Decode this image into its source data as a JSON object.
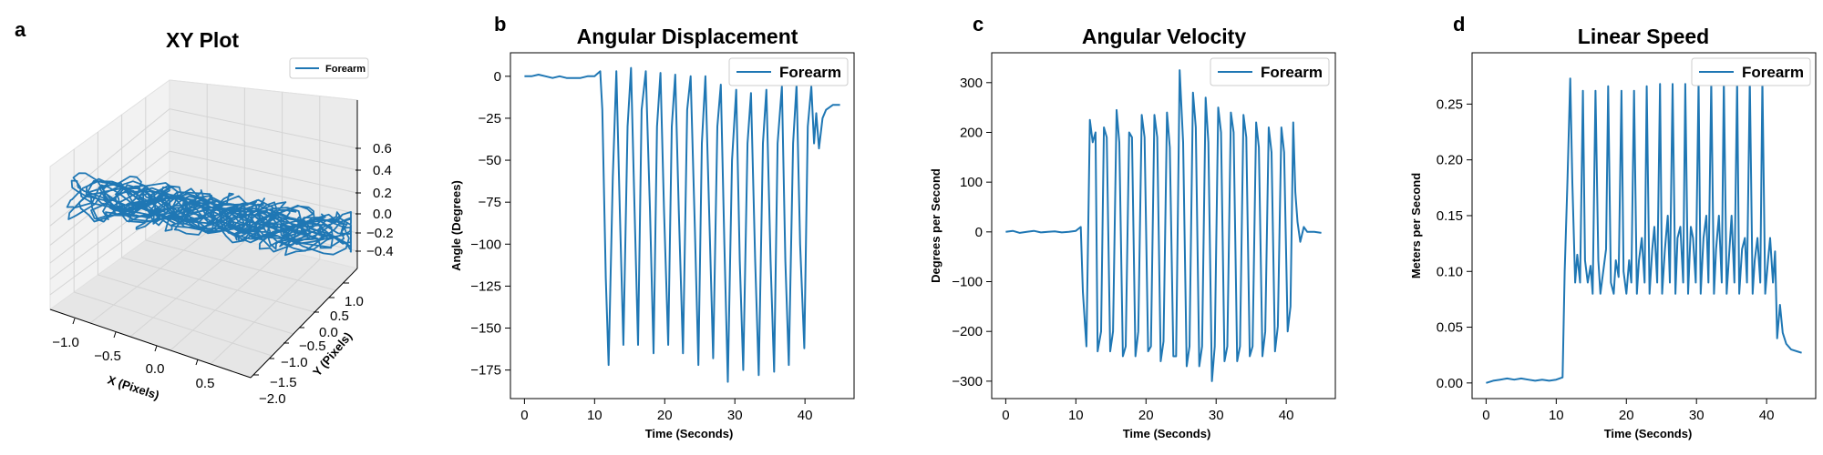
{
  "chart_data": [
    {
      "panel": "a",
      "type": "line3d",
      "title": "XY Plot",
      "xlabel": "X (Pixels)",
      "ylabel": "Y (Pixels)",
      "zlabel": "",
      "xticks": [
        "−1.0",
        "−0.5",
        "0.0",
        "0.5"
      ],
      "yticks": [
        "−2.0",
        "−1.5",
        "−1.0",
        "−0.5",
        "0.0",
        "0.5",
        "1.0"
      ],
      "zticks": [
        "−0.4",
        "−0.2",
        "0.0",
        "0.2",
        "0.4",
        "0.6"
      ],
      "xlim": [
        -1.2,
        0.9
      ],
      "ylim": [
        -2.0,
        1.2
      ],
      "zlim": [
        -0.5,
        0.7
      ],
      "legend": [
        "Forearm"
      ],
      "legend_position": "top-right",
      "series": [
        {
          "name": "Forearm",
          "description_points": "dense oscillating trajectory"
        }
      ]
    },
    {
      "panel": "b",
      "type": "line",
      "title": "Angular Displacement",
      "xlabel": "Time (Seconds)",
      "ylabel": "Angle (Degrees)",
      "xlim": [
        -2,
        47
      ],
      "ylim": [
        -192,
        14
      ],
      "xticks": [
        0,
        10,
        20,
        30,
        40
      ],
      "yticks": [
        0,
        -25,
        -50,
        -75,
        -100,
        -125,
        -150,
        -175
      ],
      "ytick_labels": [
        "0",
        "−25",
        "−50",
        "−75",
        "−100",
        "−125",
        "−150",
        "−175"
      ],
      "legend": [
        "Forearm"
      ],
      "legend_position": "top-right",
      "series": [
        {
          "name": "Forearm",
          "x": [
            0,
            1,
            2,
            3,
            4,
            5,
            6,
            7,
            8,
            9,
            10,
            10.8,
            11.1,
            11.6,
            12.0,
            12.6,
            13.1,
            13.6,
            14.1,
            14.7,
            15.2,
            15.7,
            16.2,
            16.7,
            17.3,
            17.9,
            18.4,
            18.9,
            19.4,
            19.9,
            20.5,
            21.0,
            21.5,
            22.0,
            22.6,
            23.2,
            23.7,
            24.3,
            24.8,
            25.3,
            25.8,
            26.4,
            26.9,
            27.5,
            28.0,
            28.5,
            29.0,
            29.6,
            30.2,
            30.7,
            31.2,
            31.8,
            32.3,
            32.9,
            33.4,
            34.0,
            34.5,
            35.1,
            35.6,
            36.1,
            36.7,
            37.2,
            37.7,
            38.3,
            38.8,
            39.3,
            39.9,
            40.4,
            40.9,
            41.3,
            41.6,
            42.0,
            42.5,
            43.0,
            44.0,
            45.0
          ],
          "y": [
            0,
            0,
            1,
            0,
            -1,
            0,
            -1,
            -1,
            -1,
            0,
            0,
            3,
            -20,
            -120,
            -172,
            -60,
            3,
            -80,
            -160,
            -30,
            5,
            -80,
            -160,
            -20,
            3,
            -80,
            -165,
            -30,
            2,
            -80,
            -160,
            -30,
            1,
            -80,
            -165,
            -20,
            0,
            -90,
            -172,
            -40,
            0,
            -90,
            -168,
            -30,
            -5,
            -100,
            -182,
            -50,
            -8,
            -110,
            -175,
            -40,
            -10,
            -110,
            -178,
            -40,
            -8,
            -110,
            -176,
            -40,
            -6,
            -110,
            -172,
            -40,
            -5,
            -100,
            -162,
            -30,
            -6,
            -40,
            -22,
            -43,
            -25,
            -20,
            -17,
            -17
          ]
        }
      ]
    },
    {
      "panel": "c",
      "type": "line",
      "title": "Angular Velocity",
      "xlabel": "Time (Seconds)",
      "ylabel": "Degrees per Second",
      "xlim": [
        -2,
        47
      ],
      "ylim": [
        -335,
        360
      ],
      "xticks": [
        0,
        10,
        20,
        30,
        40
      ],
      "yticks": [
        300,
        200,
        100,
        0,
        -100,
        -200,
        -300
      ],
      "ytick_labels": [
        "300",
        "200",
        "100",
        "0",
        "−100",
        "−200",
        "−300"
      ],
      "legend": [
        "Forearm"
      ],
      "legend_position": "top-right",
      "series": [
        {
          "name": "Forearm",
          "x": [
            0,
            1,
            2,
            3,
            4,
            5,
            6,
            7,
            8,
            9,
            10,
            10.7,
            11.0,
            11.5,
            12.0,
            12.4,
            12.8,
            13.1,
            13.6,
            14.0,
            14.4,
            14.9,
            15.3,
            15.8,
            16.2,
            16.7,
            17.1,
            17.6,
            18.0,
            18.5,
            18.9,
            19.4,
            19.8,
            20.3,
            20.7,
            21.2,
            21.6,
            22.1,
            22.5,
            23.0,
            23.4,
            23.9,
            24.3,
            24.8,
            25.3,
            25.8,
            26.2,
            26.7,
            27.1,
            27.6,
            28.0,
            28.5,
            28.9,
            29.4,
            29.8,
            30.3,
            30.7,
            31.2,
            31.6,
            32.1,
            32.5,
            33.0,
            33.4,
            33.9,
            34.3,
            34.8,
            35.2,
            35.7,
            36.1,
            36.6,
            37.0,
            37.5,
            37.9,
            38.4,
            38.8,
            39.3,
            39.7,
            40.2,
            40.6,
            41.0,
            41.3,
            41.6,
            42.0,
            42.5,
            43.0,
            44.0,
            45.0
          ],
          "y": [
            0,
            2,
            -2,
            0,
            2,
            -1,
            0,
            1,
            -1,
            0,
            2,
            10,
            -120,
            -230,
            225,
            180,
            200,
            -240,
            -200,
            210,
            190,
            -240,
            -200,
            245,
            180,
            -250,
            -230,
            200,
            190,
            -250,
            -200,
            235,
            190,
            -240,
            -230,
            235,
            190,
            -260,
            -220,
            240,
            170,
            -250,
            -250,
            325,
            180,
            -270,
            -230,
            280,
            210,
            -270,
            -230,
            270,
            180,
            -300,
            -230,
            250,
            200,
            -260,
            -230,
            240,
            200,
            -260,
            -230,
            235,
            190,
            -250,
            -230,
            220,
            170,
            -250,
            -200,
            210,
            160,
            -240,
            -190,
            210,
            160,
            -200,
            -150,
            220,
            80,
            20,
            -20,
            10,
            0,
            0,
            -2
          ]
        }
      ]
    },
    {
      "panel": "d",
      "type": "line",
      "title": "Linear Speed",
      "xlabel": "Time (Seconds)",
      "ylabel": "Meters per Second",
      "xlim": [
        -2,
        47
      ],
      "ylim": [
        -0.014,
        0.296
      ],
      "xticks": [
        0,
        10,
        20,
        30,
        40
      ],
      "yticks": [
        0.0,
        0.05,
        0.1,
        0.15,
        0.2,
        0.25
      ],
      "ytick_labels": [
        "0.00",
        "0.05",
        "0.10",
        "0.15",
        "0.20",
        "0.25"
      ],
      "legend": [
        "Forearm"
      ],
      "legend_position": "top-right",
      "series": [
        {
          "name": "Forearm",
          "x": [
            0,
            1,
            2,
            3,
            4,
            5,
            6,
            7,
            8,
            9,
            10,
            10.9,
            11.2,
            11.6,
            12.0,
            12.3,
            12.7,
            13.0,
            13.4,
            13.8,
            14.1,
            14.5,
            14.9,
            15.2,
            15.6,
            16.0,
            16.3,
            16.7,
            17.1,
            17.4,
            17.8,
            18.2,
            18.5,
            18.9,
            19.3,
            19.6,
            20.0,
            20.4,
            20.7,
            21.1,
            21.5,
            21.8,
            22.2,
            22.6,
            22.9,
            23.3,
            23.7,
            24.0,
            24.4,
            24.8,
            25.1,
            25.5,
            25.9,
            26.2,
            26.6,
            27.0,
            27.3,
            27.7,
            28.1,
            28.4,
            28.8,
            29.2,
            29.5,
            29.9,
            30.3,
            30.6,
            31.0,
            31.4,
            31.7,
            32.1,
            32.5,
            32.8,
            33.2,
            33.6,
            33.9,
            34.3,
            34.7,
            35.0,
            35.4,
            35.8,
            36.1,
            36.5,
            36.9,
            37.2,
            37.6,
            38.0,
            38.3,
            38.7,
            39.1,
            39.4,
            39.8,
            40.2,
            40.5,
            40.9,
            41.2,
            41.5,
            41.9,
            42.3,
            42.8,
            43.5,
            44.5,
            45.0
          ],
          "y": [
            0.0,
            0.002,
            0.003,
            0.004,
            0.003,
            0.004,
            0.003,
            0.002,
            0.003,
            0.002,
            0.003,
            0.005,
            0.1,
            0.18,
            0.273,
            0.18,
            0.09,
            0.115,
            0.09,
            0.262,
            0.11,
            0.09,
            0.105,
            0.08,
            0.262,
            0.11,
            0.08,
            0.1,
            0.12,
            0.266,
            0.09,
            0.08,
            0.11,
            0.095,
            0.262,
            0.1,
            0.08,
            0.11,
            0.09,
            0.262,
            0.08,
            0.11,
            0.13,
            0.09,
            0.266,
            0.08,
            0.12,
            0.14,
            0.09,
            0.268,
            0.08,
            0.12,
            0.15,
            0.09,
            0.268,
            0.08,
            0.13,
            0.14,
            0.09,
            0.268,
            0.08,
            0.14,
            0.13,
            0.09,
            0.27,
            0.08,
            0.13,
            0.15,
            0.09,
            0.27,
            0.08,
            0.12,
            0.15,
            0.09,
            0.272,
            0.08,
            0.12,
            0.15,
            0.09,
            0.272,
            0.08,
            0.12,
            0.13,
            0.09,
            0.272,
            0.08,
            0.11,
            0.13,
            0.09,
            0.272,
            0.08,
            0.11,
            0.13,
            0.09,
            0.118,
            0.04,
            0.07,
            0.045,
            0.035,
            0.03,
            0.028,
            0.027
          ]
        }
      ]
    }
  ],
  "panel_letters": [
    "a",
    "b",
    "c",
    "d"
  ],
  "colors": {
    "series": "#1f77b4",
    "axis": "#000000",
    "legend_border": "#cccccc"
  }
}
